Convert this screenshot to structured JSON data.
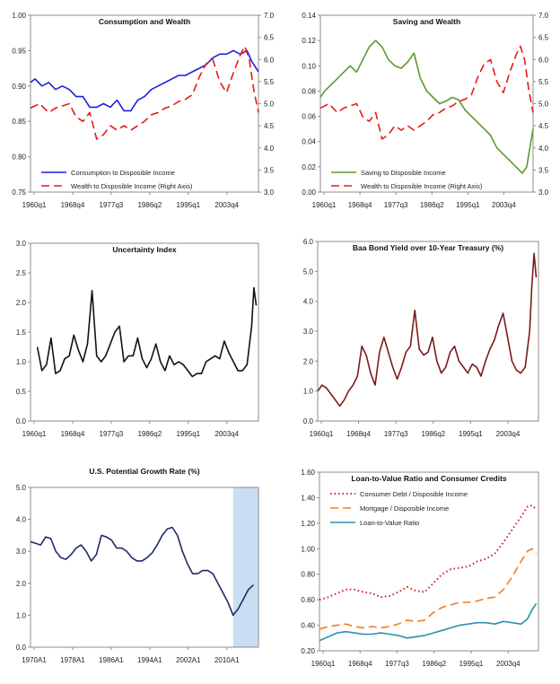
{
  "chart_data": [
    {
      "type": "line",
      "title": "Consumption and Wealth",
      "x_ticks": [
        "1960q1",
        "1968q4",
        "1977q3",
        "1986q2",
        "1995q1",
        "2003q4"
      ],
      "x_range": [
        1960.0,
        2010.0
      ],
      "y_left": {
        "range": [
          0.75,
          1.0
        ],
        "ticks": [
          "0.75",
          "0.80",
          "0.85",
          "0.90",
          "0.95",
          "1.00"
        ]
      },
      "y_right": {
        "range": [
          3.0,
          7.0
        ],
        "ticks": [
          "3.0",
          "3.5",
          "4.0",
          "4.5",
          "5.0",
          "5.5",
          "6.0",
          "6.5",
          "7.0"
        ]
      },
      "legend_position": "bottom-left",
      "series": [
        {
          "name": "Consumption to Disposible Income",
          "axis": "left",
          "color": "#1f1fe0",
          "style": "solid",
          "x": [
            1960.0,
            1961.0,
            1962.5,
            1964.0,
            1965.5,
            1967.0,
            1968.5,
            1970.0,
            1971.5,
            1973.0,
            1974.5,
            1976.0,
            1977.5,
            1979.0,
            1980.5,
            1982.0,
            1983.5,
            1985.0,
            1986.5,
            1988.0,
            1989.5,
            1991.0,
            1992.5,
            1994.0,
            1995.5,
            1997.0,
            1998.5,
            2000.0,
            2001.5,
            2003.0,
            2004.5,
            2006.0,
            2007.5,
            2008.5,
            2009.5,
            2010.0
          ],
          "y": [
            0.905,
            0.91,
            0.9,
            0.905,
            0.895,
            0.9,
            0.895,
            0.885,
            0.885,
            0.87,
            0.87,
            0.875,
            0.87,
            0.88,
            0.865,
            0.865,
            0.88,
            0.885,
            0.895,
            0.9,
            0.905,
            0.91,
            0.915,
            0.915,
            0.92,
            0.925,
            0.93,
            0.94,
            0.945,
            0.945,
            0.95,
            0.945,
            0.95,
            0.935,
            0.925,
            0.92
          ]
        },
        {
          "name": "Wealth to Disposible Income (Right Axis)",
          "axis": "right",
          "color": "#e81818",
          "style": "dashed",
          "x": [
            1960.0,
            1962.0,
            1964.0,
            1965.5,
            1967.0,
            1968.5,
            1970.0,
            1971.5,
            1973.0,
            1974.5,
            1976.0,
            1977.5,
            1979.0,
            1980.5,
            1982.0,
            1983.5,
            1985.0,
            1986.5,
            1988.0,
            1989.5,
            1991.0,
            1992.5,
            1994.0,
            1995.5,
            1997.0,
            1998.5,
            2000.0,
            2001.5,
            2003.0,
            2004.5,
            2006.0,
            2007.0,
            2008.0,
            2009.0,
            2010.0
          ],
          "y": [
            4.9,
            5.0,
            4.8,
            4.9,
            4.95,
            5.0,
            4.7,
            4.6,
            4.8,
            4.2,
            4.3,
            4.5,
            4.4,
            4.5,
            4.4,
            4.5,
            4.6,
            4.75,
            4.8,
            4.9,
            4.95,
            5.05,
            5.1,
            5.2,
            5.6,
            5.9,
            6.0,
            5.5,
            5.25,
            5.7,
            6.1,
            6.3,
            6.0,
            5.3,
            4.8
          ]
        }
      ]
    },
    {
      "type": "line",
      "title": "Saving and Wealth",
      "x_ticks": [
        "1960q1",
        "1968q4",
        "1977q3",
        "1986q2",
        "1995q1",
        "2003q4"
      ],
      "x_range": [
        1960.0,
        2010.0
      ],
      "y_left": {
        "range": [
          0.0,
          0.14
        ],
        "ticks": [
          "0.00",
          "0.02",
          "0.04",
          "0.06",
          "0.08",
          "0.10",
          "0.12",
          "0.14"
        ]
      },
      "y_right": {
        "range": [
          3.0,
          7.0
        ],
        "ticks": [
          "3.0",
          "3.5",
          "4.0",
          "4.5",
          "5.0",
          "5.5",
          "6.0",
          "6.5",
          "7.0"
        ]
      },
      "legend_position": "bottom-left",
      "series": [
        {
          "name": "Saving to Disposible Income",
          "axis": "left",
          "color": "#5a9a2e",
          "style": "solid",
          "x": [
            1960.0,
            1961.0,
            1962.5,
            1964.0,
            1965.5,
            1967.0,
            1968.5,
            1970.0,
            1971.5,
            1973.0,
            1974.5,
            1976.0,
            1977.5,
            1979.0,
            1980.5,
            1982.0,
            1983.5,
            1985.0,
            1986.5,
            1988.0,
            1989.5,
            1991.0,
            1992.5,
            1994.0,
            1995.5,
            1997.0,
            1998.5,
            2000.0,
            2001.5,
            2003.0,
            2004.5,
            2006.0,
            2007.5,
            2008.5,
            2009.5,
            2010.0
          ],
          "y": [
            0.075,
            0.08,
            0.085,
            0.09,
            0.095,
            0.1,
            0.095,
            0.105,
            0.115,
            0.12,
            0.115,
            0.105,
            0.1,
            0.098,
            0.103,
            0.11,
            0.09,
            0.08,
            0.075,
            0.07,
            0.072,
            0.075,
            0.073,
            0.065,
            0.06,
            0.055,
            0.05,
            0.045,
            0.035,
            0.03,
            0.025,
            0.02,
            0.015,
            0.02,
            0.04,
            0.05
          ]
        },
        {
          "name": "Wealth to Disposible Income (Right Axis)",
          "axis": "right",
          "color": "#e81818",
          "style": "dashed",
          "x": [
            1960.0,
            1962.0,
            1964.0,
            1965.5,
            1967.0,
            1968.5,
            1970.0,
            1971.5,
            1973.0,
            1974.5,
            1976.0,
            1977.5,
            1979.0,
            1980.5,
            1982.0,
            1983.5,
            1985.0,
            1986.5,
            1988.0,
            1989.5,
            1991.0,
            1992.5,
            1994.0,
            1995.5,
            1997.0,
            1998.5,
            2000.0,
            2001.5,
            2003.0,
            2004.5,
            2006.0,
            2007.0,
            2008.0,
            2009.0,
            2010.0
          ],
          "y": [
            4.9,
            5.0,
            4.8,
            4.9,
            4.95,
            5.0,
            4.7,
            4.6,
            4.8,
            4.2,
            4.3,
            4.5,
            4.4,
            4.5,
            4.4,
            4.5,
            4.6,
            4.75,
            4.8,
            4.9,
            4.95,
            5.05,
            5.1,
            5.2,
            5.6,
            5.9,
            6.0,
            5.5,
            5.25,
            5.7,
            6.1,
            6.3,
            6.0,
            5.3,
            4.8
          ]
        }
      ]
    },
    {
      "type": "line",
      "title": "Uncertainty Index",
      "x_ticks": [
        "1960q1",
        "1968q4",
        "1977q3",
        "1986q2",
        "1995q1",
        "2003q4"
      ],
      "x_range": [
        1960.0,
        2010.0
      ],
      "y_left": {
        "range": [
          0.0,
          3.0
        ],
        "ticks": [
          "0.0",
          "0.5",
          "1.0",
          "1.5",
          "2.0",
          "2.5",
          "3.0"
        ]
      },
      "series": [
        {
          "name": "",
          "axis": "left",
          "color": "#111111",
          "style": "solid",
          "x": [
            1961.5,
            1962.5,
            1963.5,
            1964.5,
            1965.5,
            1966.5,
            1967.5,
            1968.5,
            1969.5,
            1970.5,
            1971.5,
            1972.5,
            1973.5,
            1974.5,
            1975.5,
            1976.5,
            1977.5,
            1978.5,
            1979.5,
            1980.5,
            1981.5,
            1982.5,
            1983.5,
            1984.5,
            1985.5,
            1986.5,
            1987.5,
            1988.5,
            1989.5,
            1990.5,
            1991.5,
            1992.5,
            1993.5,
            1994.5,
            1995.5,
            1996.5,
            1997.5,
            1998.5,
            1999.5,
            2000.5,
            2001.5,
            2002.5,
            2003.5,
            2004.5,
            2005.5,
            2006.5,
            2007.5,
            2008.5,
            2009.0,
            2009.5
          ],
          "y": [
            1.25,
            0.85,
            0.95,
            1.4,
            0.8,
            0.85,
            1.05,
            1.1,
            1.45,
            1.2,
            1.0,
            1.3,
            2.2,
            1.1,
            1.0,
            1.1,
            1.3,
            1.5,
            1.6,
            1.0,
            1.1,
            1.1,
            1.4,
            1.05,
            0.9,
            1.05,
            1.3,
            1.0,
            0.85,
            1.1,
            0.95,
            1.0,
            0.95,
            0.85,
            0.75,
            0.8,
            0.8,
            1.0,
            1.05,
            1.1,
            1.05,
            1.35,
            1.15,
            1.0,
            0.85,
            0.85,
            0.95,
            1.6,
            2.25,
            1.95
          ]
        }
      ]
    },
    {
      "type": "line",
      "title": "Baa Bond Yield over 10-Year Treasury (%)",
      "x_ticks": [
        "1960q1",
        "1968q4",
        "1977q3",
        "1986q2",
        "1995q1",
        "2003q4"
      ],
      "x_range": [
        1960.0,
        2010.0
      ],
      "y_left": {
        "range": [
          0.0,
          6.0
        ],
        "ticks": [
          "0.0",
          "1.0",
          "2.0",
          "3.0",
          "4.0",
          "5.0",
          "6.0"
        ]
      },
      "series": [
        {
          "name": "",
          "axis": "left",
          "color": "#7a1a1a",
          "style": "solid",
          "x": [
            1960.0,
            1961.0,
            1962.0,
            1963.0,
            1964.0,
            1965.0,
            1966.0,
            1967.0,
            1968.0,
            1969.0,
            1970.0,
            1971.0,
            1972.0,
            1973.0,
            1974.0,
            1975.0,
            1976.0,
            1977.0,
            1978.0,
            1979.0,
            1980.0,
            1981.0,
            1982.0,
            1983.0,
            1984.0,
            1985.0,
            1986.0,
            1987.0,
            1988.0,
            1989.0,
            1990.0,
            1991.0,
            1992.0,
            1993.0,
            1994.0,
            1995.0,
            1996.0,
            1997.0,
            1998.0,
            1999.0,
            2000.0,
            2001.0,
            2002.0,
            2003.0,
            2004.0,
            2005.0,
            2006.0,
            2007.0,
            2008.0,
            2008.5,
            2009.0,
            2009.5
          ],
          "y": [
            1.0,
            1.2,
            1.1,
            0.9,
            0.7,
            0.5,
            0.7,
            1.0,
            1.2,
            1.5,
            2.5,
            2.2,
            1.6,
            1.2,
            2.3,
            2.8,
            2.3,
            1.8,
            1.4,
            1.8,
            2.3,
            2.5,
            3.7,
            2.4,
            2.2,
            2.3,
            2.8,
            2.0,
            1.6,
            1.8,
            2.3,
            2.5,
            2.0,
            1.8,
            1.6,
            1.9,
            1.8,
            1.5,
            2.0,
            2.4,
            2.7,
            3.2,
            3.6,
            2.8,
            2.0,
            1.7,
            1.6,
            1.8,
            3.0,
            4.5,
            5.6,
            4.8
          ]
        }
      ]
    },
    {
      "type": "line",
      "title": "U.S. Potential Growth Rate (%)",
      "x_ticks": [
        "1970A1",
        "1978A1",
        "1986A1",
        "1994A1",
        "2002A1",
        "2010A1"
      ],
      "x_range": [
        1970.0,
        2015.0
      ],
      "y_left": {
        "range": [
          0.0,
          5.0
        ],
        "ticks": [
          "0.0",
          "1.0",
          "2.0",
          "3.0",
          "4.0",
          "5.0"
        ]
      },
      "shaded_region": {
        "x": [
          2010.0,
          2015.0
        ],
        "color": "#c9def2"
      },
      "series": [
        {
          "name": "",
          "axis": "left",
          "color": "#1f2a6b",
          "style": "solid",
          "x": [
            1970,
            1971,
            1972,
            1973,
            1974,
            1975,
            1976,
            1977,
            1978,
            1979,
            1980,
            1981,
            1982,
            1983,
            1984,
            1985,
            1986,
            1987,
            1988,
            1989,
            1990,
            1991,
            1992,
            1993,
            1994,
            1995,
            1996,
            1997,
            1998,
            1999,
            2000,
            2001,
            2002,
            2003,
            2004,
            2005,
            2006,
            2007,
            2008,
            2009,
            2010,
            2011,
            2012,
            2013,
            2014
          ],
          "y": [
            3.3,
            3.25,
            3.2,
            3.45,
            3.4,
            3.0,
            2.8,
            2.75,
            2.9,
            3.1,
            3.2,
            3.0,
            2.7,
            2.9,
            3.5,
            3.45,
            3.35,
            3.1,
            3.1,
            3.0,
            2.8,
            2.7,
            2.7,
            2.8,
            2.95,
            3.2,
            3.5,
            3.7,
            3.75,
            3.5,
            3.0,
            2.6,
            2.3,
            2.3,
            2.4,
            2.4,
            2.3,
            2.0,
            1.7,
            1.4,
            1.0,
            1.2,
            1.5,
            1.8,
            1.95
          ]
        }
      ]
    },
    {
      "type": "line",
      "title": "Loan-to-Value Ratio and Consumer Credits",
      "x_ticks": [
        "1960q1",
        "1968q4",
        "1977q3",
        "1986q2",
        "1995q1",
        "2003q4"
      ],
      "x_range": [
        1960.0,
        2010.0
      ],
      "y_left": {
        "range": [
          0.2,
          1.6
        ],
        "ticks": [
          "0.20",
          "0.40",
          "0.60",
          "0.80",
          "1.00",
          "1.20",
          "1.40",
          "1.60"
        ]
      },
      "legend_position": "top-left",
      "series": [
        {
          "name": "Consumer Debt / Disposible Income",
          "axis": "left",
          "color": "#c8202a",
          "style": "dotted",
          "x": [
            1960.0,
            1962.0,
            1964.0,
            1966.0,
            1968.0,
            1970.0,
            1972.0,
            1974.0,
            1976.0,
            1978.0,
            1980.0,
            1982.0,
            1984.0,
            1986.0,
            1988.0,
            1990.0,
            1992.0,
            1994.0,
            1996.0,
            1998.0,
            2000.0,
            2002.0,
            2004.0,
            2006.0,
            2007.5,
            2008.5,
            2009.5
          ],
          "y": [
            0.6,
            0.62,
            0.65,
            0.68,
            0.68,
            0.66,
            0.65,
            0.62,
            0.63,
            0.66,
            0.7,
            0.67,
            0.66,
            0.73,
            0.8,
            0.84,
            0.85,
            0.86,
            0.9,
            0.92,
            0.96,
            1.05,
            1.15,
            1.25,
            1.33,
            1.34,
            1.31
          ]
        },
        {
          "name": "Mortgage / Disposible Income",
          "axis": "left",
          "color": "#f07e22",
          "style": "dashed",
          "x": [
            1960.0,
            1962.0,
            1964.0,
            1966.0,
            1968.0,
            1970.0,
            1972.0,
            1974.0,
            1976.0,
            1978.0,
            1980.0,
            1982.0,
            1984.0,
            1986.0,
            1988.0,
            1990.0,
            1992.0,
            1994.0,
            1996.0,
            1998.0,
            2000.0,
            2002.0,
            2004.0,
            2006.0,
            2007.5,
            2008.5,
            2009.5
          ],
          "y": [
            0.37,
            0.39,
            0.4,
            0.41,
            0.39,
            0.38,
            0.39,
            0.38,
            0.39,
            0.41,
            0.44,
            0.43,
            0.44,
            0.5,
            0.54,
            0.56,
            0.58,
            0.58,
            0.59,
            0.61,
            0.62,
            0.68,
            0.78,
            0.9,
            0.98,
            1.0,
            0.96
          ]
        },
        {
          "name": "Loan-to-Value Ratio",
          "axis": "left",
          "color": "#2e8fb0",
          "style": "solid",
          "x": [
            1960.0,
            1962.0,
            1964.0,
            1966.0,
            1968.0,
            1970.0,
            1972.0,
            1974.0,
            1976.0,
            1978.0,
            1980.0,
            1982.0,
            1984.0,
            1986.0,
            1988.0,
            1990.0,
            1992.0,
            1994.0,
            1996.0,
            1998.0,
            2000.0,
            2002.0,
            2004.0,
            2006.0,
            2007.5,
            2008.5,
            2009.5
          ],
          "y": [
            0.28,
            0.31,
            0.34,
            0.35,
            0.34,
            0.33,
            0.33,
            0.34,
            0.33,
            0.32,
            0.3,
            0.31,
            0.32,
            0.34,
            0.36,
            0.38,
            0.4,
            0.41,
            0.42,
            0.42,
            0.41,
            0.43,
            0.42,
            0.41,
            0.45,
            0.52,
            0.57
          ]
        }
      ]
    }
  ]
}
